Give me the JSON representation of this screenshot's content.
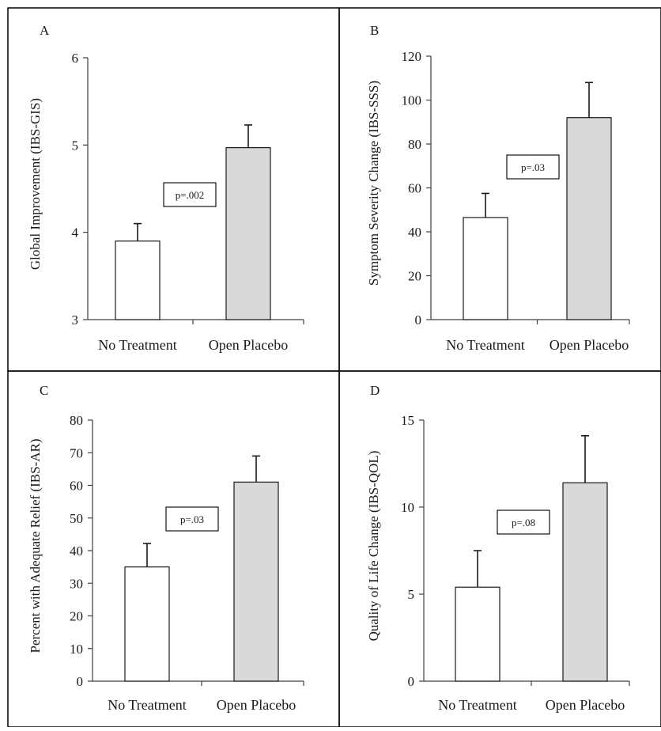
{
  "colors": {
    "no_treatment_fill": "#ffffff",
    "open_placebo_fill": "#d9d9d9",
    "bar_stroke": "#1a1a1a",
    "axis": "#404040",
    "border": "#111111"
  },
  "chart_data": [
    {
      "panel": "A",
      "type": "bar",
      "categories": [
        "No Treatment",
        "Open Placebo"
      ],
      "values": [
        3.9,
        4.97
      ],
      "error_upper": [
        4.1,
        5.23
      ],
      "ylabel": "Global Improvement (IBS-GIS)",
      "ylim": [
        3,
        6
      ],
      "yticks": [
        "3",
        "4",
        "5",
        "6"
      ],
      "annotation": "p=.002",
      "grid": false
    },
    {
      "panel": "B",
      "type": "bar",
      "categories": [
        "No Treatment",
        "Open Placebo"
      ],
      "values": [
        46.5,
        92
      ],
      "error_upper": [
        57.5,
        108
      ],
      "ylabel": "Symptom Severity Change (IBS-SSS)",
      "ylim": [
        0,
        120
      ],
      "yticks": [
        "0",
        "20",
        "40",
        "60",
        "80",
        "100",
        "120"
      ],
      "annotation": "p=.03",
      "grid": false
    },
    {
      "panel": "C",
      "type": "bar",
      "categories": [
        "No Treatment",
        "Open Placebo"
      ],
      "values": [
        35,
        61
      ],
      "error_upper": [
        42.2,
        69
      ],
      "ylabel": "Percent with Adequate Relief (IBS-AR)",
      "ylim": [
        0,
        80
      ],
      "yticks": [
        "0",
        "10",
        "20",
        "30",
        "40",
        "50",
        "60",
        "70",
        "80"
      ],
      "annotation": "p=.03",
      "grid": false
    },
    {
      "panel": "D",
      "type": "bar",
      "categories": [
        "No Treatment",
        "Open Placebo"
      ],
      "values": [
        5.4,
        11.4
      ],
      "error_upper": [
        7.5,
        14.1
      ],
      "ylabel": "Quality of Life Change (IBS-QOL)",
      "ylim": [
        0,
        15
      ],
      "yticks": [
        "0",
        "5",
        "10",
        "15"
      ],
      "annotation": "p=.08",
      "grid": false
    }
  ]
}
